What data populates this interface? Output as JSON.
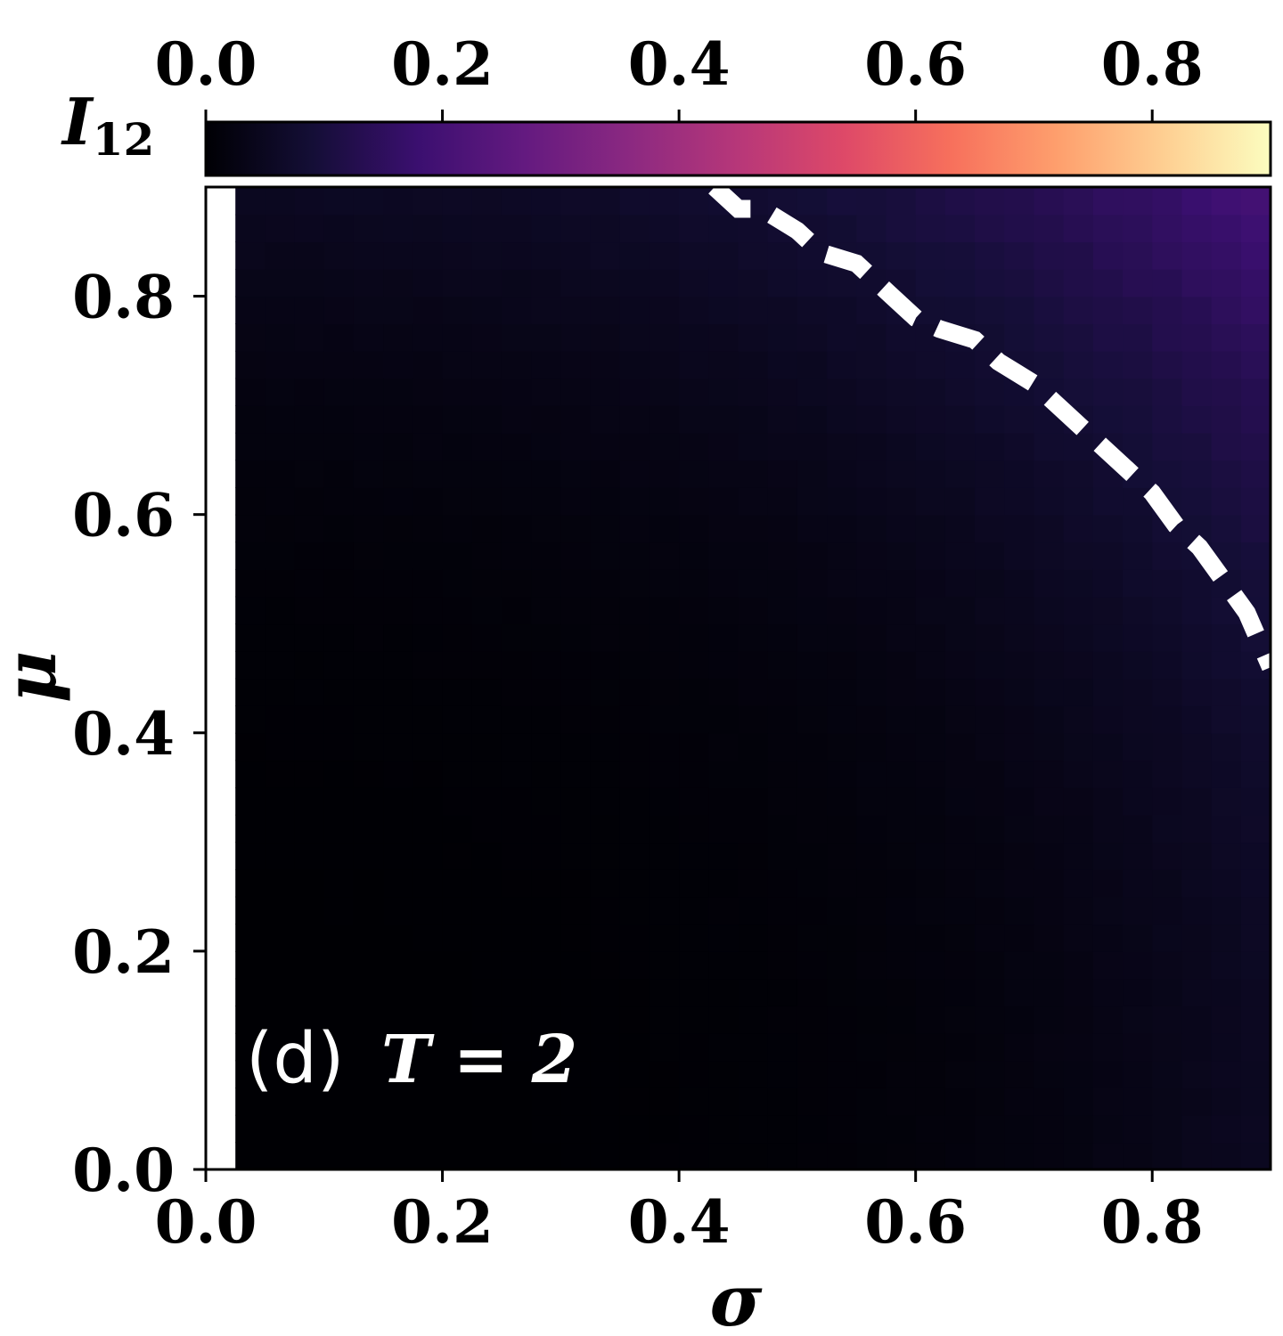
{
  "chart_data": {
    "type": "heatmap",
    "xlabel": "σ",
    "ylabel": "μ",
    "xlim": [
      0.0,
      0.9
    ],
    "ylim": [
      0.0,
      0.9
    ],
    "x_ticks": [
      "0.0",
      "0.2",
      "0.4",
      "0.6",
      "0.8"
    ],
    "y_ticks": [
      "0.0",
      "0.2",
      "0.4",
      "0.6",
      "0.8"
    ],
    "colorbar": {
      "label_main": "I",
      "label_sub": "12",
      "colormap": "magma",
      "range": [
        0.0,
        0.9
      ],
      "ticks": [
        "0.0",
        "0.2",
        "0.4",
        "0.6",
        "0.8"
      ],
      "placement": "top"
    },
    "annotation": {
      "panel": "(d)",
      "text": "T = 2"
    },
    "surface_model": "I12 ≈ 0.14 · (σ² + μ²)/(0.9² + 0.9²) with small noise; blank region for σ < 0.02",
    "boundary_curve": {
      "style": "white dashed",
      "x": [
        0.43,
        0.45,
        0.47,
        0.5,
        0.52,
        0.55,
        0.58,
        0.6,
        0.62,
        0.65,
        0.67,
        0.7,
        0.72,
        0.75,
        0.78,
        0.8,
        0.82,
        0.84,
        0.86,
        0.88,
        0.9
      ],
      "y": [
        0.9,
        0.88,
        0.88,
        0.86,
        0.84,
        0.83,
        0.8,
        0.78,
        0.77,
        0.76,
        0.74,
        0.72,
        0.7,
        0.67,
        0.64,
        0.62,
        0.59,
        0.57,
        0.54,
        0.51,
        0.46
      ]
    }
  }
}
